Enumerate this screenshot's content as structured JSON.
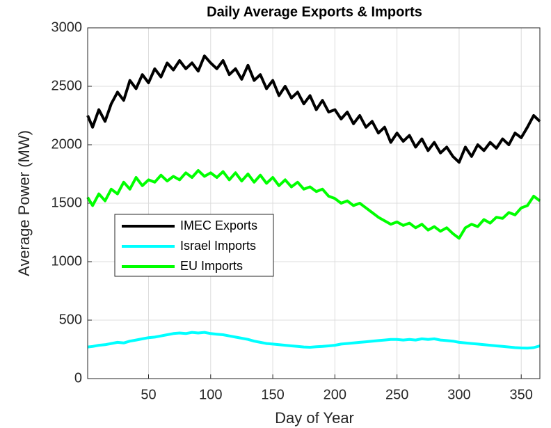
{
  "chart_data": {
    "type": "line",
    "title": "Daily Average Exports & Imports",
    "xlabel": "Day of Year",
    "ylabel": "Average Power (MW)",
    "x": [
      1,
      5,
      10,
      15,
      20,
      25,
      30,
      35,
      40,
      45,
      50,
      55,
      60,
      65,
      70,
      75,
      80,
      85,
      90,
      95,
      100,
      105,
      110,
      115,
      120,
      125,
      130,
      135,
      140,
      145,
      150,
      155,
      160,
      165,
      170,
      175,
      180,
      185,
      190,
      195,
      200,
      205,
      210,
      215,
      220,
      225,
      230,
      235,
      240,
      245,
      250,
      255,
      260,
      265,
      270,
      275,
      280,
      285,
      290,
      295,
      300,
      305,
      310,
      315,
      320,
      325,
      330,
      335,
      340,
      345,
      350,
      355,
      360,
      365
    ],
    "series": [
      {
        "name": "IMEC Exports",
        "color": "#000000",
        "values": [
          2250,
          2150,
          2300,
          2200,
          2350,
          2450,
          2380,
          2550,
          2480,
          2600,
          2530,
          2650,
          2580,
          2700,
          2640,
          2720,
          2650,
          2700,
          2630,
          2760,
          2700,
          2650,
          2720,
          2600,
          2650,
          2560,
          2680,
          2550,
          2600,
          2480,
          2550,
          2420,
          2500,
          2400,
          2450,
          2350,
          2420,
          2300,
          2380,
          2280,
          2300,
          2220,
          2280,
          2180,
          2250,
          2150,
          2200,
          2100,
          2150,
          2020,
          2100,
          2030,
          2080,
          1980,
          2050,
          1950,
          2020,
          1930,
          1980,
          1900,
          1850,
          1980,
          1900,
          2000,
          1950,
          2020,
          1970,
          2050,
          2000,
          2100,
          2060,
          2150,
          2250,
          2200
        ]
      },
      {
        "name": "Israel Imports",
        "color": "#00ffff",
        "values": [
          270,
          275,
          285,
          290,
          300,
          310,
          305,
          320,
          330,
          340,
          350,
          355,
          365,
          375,
          385,
          390,
          385,
          395,
          390,
          395,
          385,
          380,
          375,
          365,
          355,
          345,
          335,
          320,
          310,
          300,
          295,
          290,
          285,
          280,
          275,
          270,
          268,
          272,
          275,
          280,
          285,
          295,
          300,
          305,
          310,
          315,
          320,
          325,
          330,
          335,
          335,
          330,
          335,
          330,
          340,
          335,
          340,
          330,
          325,
          320,
          310,
          305,
          300,
          295,
          290,
          285,
          280,
          275,
          270,
          265,
          262,
          260,
          265,
          280
        ]
      },
      {
        "name": "EU Imports",
        "color": "#00ff00",
        "values": [
          1550,
          1480,
          1580,
          1520,
          1620,
          1580,
          1680,
          1620,
          1720,
          1650,
          1700,
          1680,
          1740,
          1690,
          1730,
          1700,
          1760,
          1720,
          1780,
          1730,
          1760,
          1720,
          1770,
          1700,
          1760,
          1690,
          1750,
          1680,
          1740,
          1670,
          1720,
          1650,
          1700,
          1640,
          1680,
          1620,
          1640,
          1600,
          1620,
          1560,
          1540,
          1500,
          1520,
          1480,
          1500,
          1460,
          1420,
          1380,
          1350,
          1320,
          1340,
          1310,
          1330,
          1290,
          1320,
          1270,
          1300,
          1260,
          1290,
          1240,
          1200,
          1290,
          1320,
          1300,
          1360,
          1330,
          1380,
          1370,
          1420,
          1400,
          1460,
          1480,
          1560,
          1520
        ]
      }
    ],
    "xlim": [
      1,
      365
    ],
    "ylim": [
      0,
      3000
    ],
    "xticks": [
      50,
      100,
      150,
      200,
      250,
      300,
      350
    ],
    "yticks": [
      0,
      500,
      1000,
      1500,
      2000,
      2500,
      3000
    ],
    "grid": true
  }
}
